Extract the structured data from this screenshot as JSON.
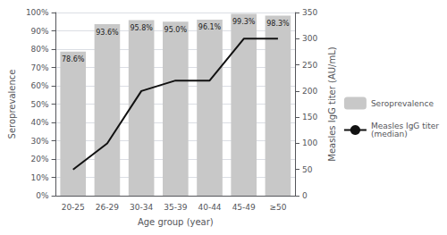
{
  "chart_data": {
    "type": "bar",
    "categories": [
      "20-25",
      "26-29",
      "30-34",
      "35-39",
      "40-44",
      "45-49",
      "≥50"
    ],
    "series": [
      {
        "name": "Seroprevalence",
        "type": "bar",
        "color": "#c8c8c8",
        "values": [
          0.786,
          0.936,
          0.958,
          0.95,
          0.961,
          0.993,
          0.983
        ],
        "value_labels": [
          "78.6%",
          "93.6%",
          "95.8%",
          "95.0%",
          "96.1%",
          "99.3%",
          "98.3%"
        ],
        "data_labels": true
      },
      {
        "name": "Measles IgG titer\n(median)",
        "type": "line",
        "color": "#111111",
        "axis": "y2",
        "values": [
          50,
          100,
          200,
          220,
          220,
          300,
          300
        ]
      }
    ],
    "xlabel": "Age group (year)",
    "ylabel": "Seroprevalence",
    "y2label": "Measles IgG titer (AU/mL)",
    "ylim": [
      0,
      1.0
    ],
    "yticks": [
      {
        "value": 0.0,
        "label": "0%"
      },
      {
        "value": 0.1,
        "label": "10%"
      },
      {
        "value": 0.2,
        "label": "20%"
      },
      {
        "value": 0.3,
        "label": "30%"
      },
      {
        "value": 0.4,
        "label": "40%"
      },
      {
        "value": 0.5,
        "label": "50%"
      },
      {
        "value": 0.6,
        "label": "60%"
      },
      {
        "value": 0.7,
        "label": "70%"
      },
      {
        "value": 0.8,
        "label": "80%"
      },
      {
        "value": 0.9,
        "label": "90%"
      },
      {
        "value": 1.0,
        "label": "100%"
      }
    ],
    "y2lim": [
      0,
      350
    ],
    "y2ticks": [
      0,
      50,
      100,
      150,
      200,
      250,
      300,
      350
    ],
    "grid": true,
    "legend": "right"
  }
}
